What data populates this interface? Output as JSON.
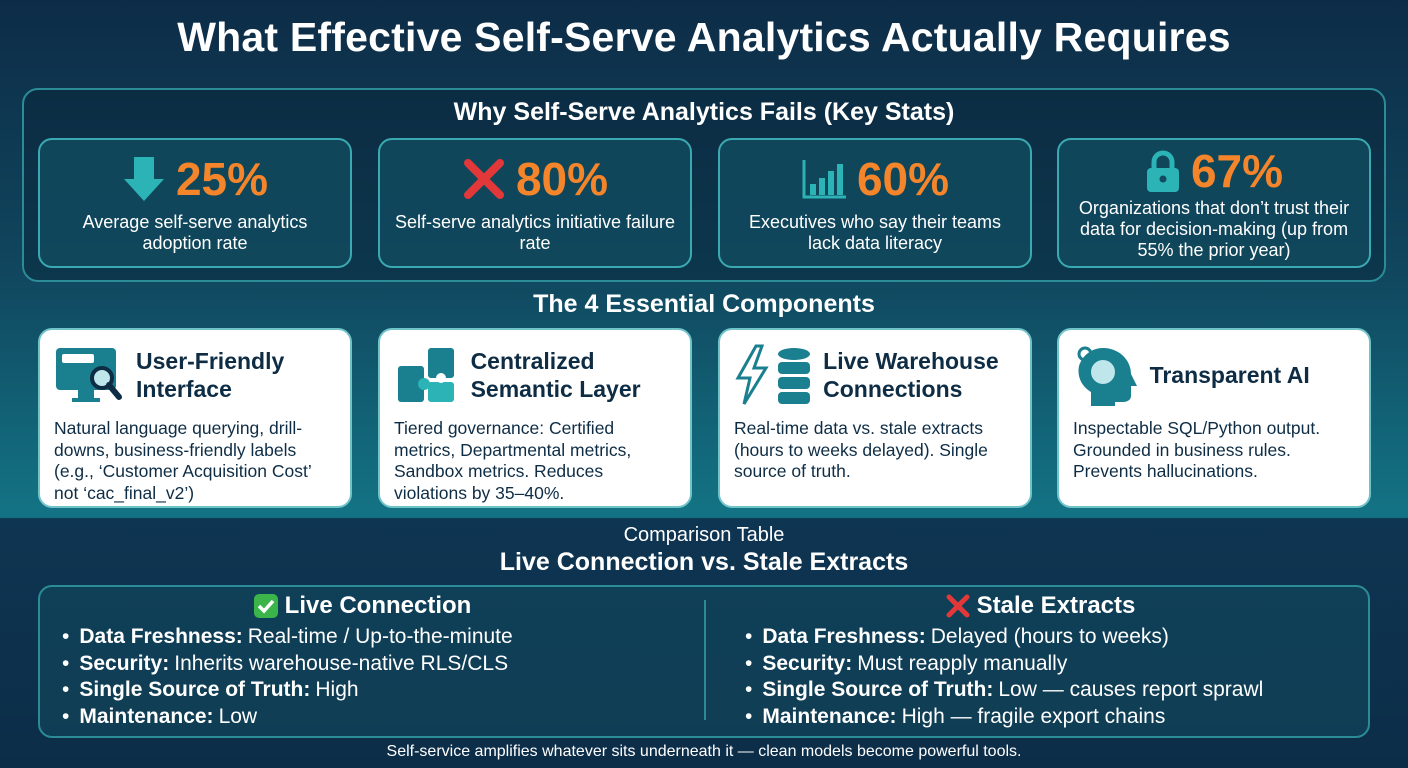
{
  "title": "What Effective Self-Serve Analytics Actually Requires",
  "stats": {
    "title": "Why Self-Serve Analytics Fails (Key Stats)",
    "items": [
      {
        "value": "25%",
        "label": "Average self-serve analytics adoption rate"
      },
      {
        "value": "80%",
        "label": "Self-serve analytics initiative failure rate"
      },
      {
        "value": "60%",
        "label": "Executives who say their teams lack data literacy"
      },
      {
        "value": "67%",
        "label": "Organizations that don’t trust their data for decision-making (up from 55% the prior year)"
      }
    ]
  },
  "components": {
    "title": "The 4 Essential Components",
    "items": [
      {
        "title": "User-Friendly Interface",
        "body": "Natural language querying, drill-downs, business-friendly labels (e.g., ‘Customer Acquisition Cost’ not ‘cac_final_v2’)"
      },
      {
        "title": "Centralized Semantic Layer",
        "body": "Tiered governance: Certified metrics, Departmental metrics, Sandbox metrics. Reduces violations by 35–40%."
      },
      {
        "title": "Live Warehouse Connections",
        "body": "Real-time data vs. stale extracts (hours to weeks delayed). Single source of truth."
      },
      {
        "title": "Transparent AI",
        "body": "Inspectable SQL/Python output. Grounded in business rules. Prevents hallucinations."
      }
    ]
  },
  "comparison": {
    "kicker": "Comparison Table",
    "title": "Live Connection vs. Stale Extracts",
    "columns": [
      {
        "heading": "Live Connection",
        "rows": [
          {
            "label": "Data Freshness:",
            "text": "Real-time / Up-to-the-minute"
          },
          {
            "label": "Security:",
            "text": "Inherits warehouse-native RLS/CLS"
          },
          {
            "label": "Single Source of Truth:",
            "text": "High"
          },
          {
            "label": "Maintenance:",
            "text": "Low"
          }
        ]
      },
      {
        "heading": "Stale Extracts",
        "rows": [
          {
            "label": "Data Freshness:",
            "text": "Delayed (hours to weeks)"
          },
          {
            "label": "Security:",
            "text": "Must reapply manually"
          },
          {
            "label": "Single Source of Truth:",
            "text": "Low — causes report sprawl"
          },
          {
            "label": "Maintenance:",
            "text": "High — fragile export chains"
          }
        ]
      }
    ]
  },
  "footer": "Self-service amplifies whatever sits underneath it — clean models become powerful tools."
}
